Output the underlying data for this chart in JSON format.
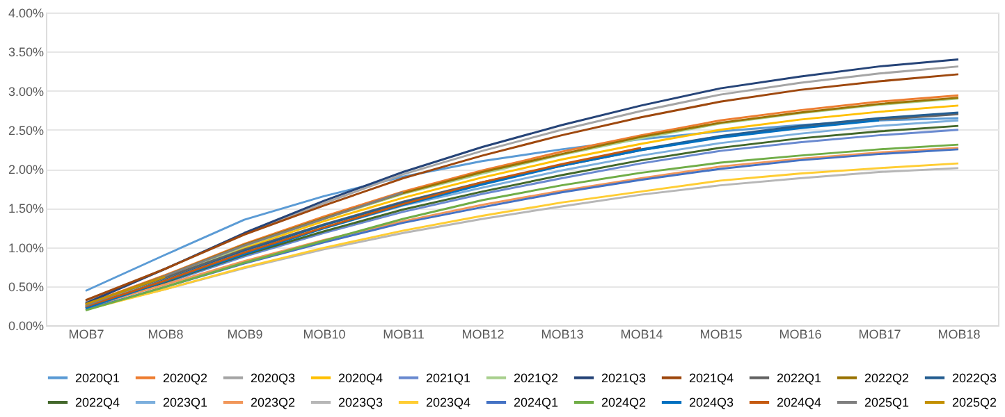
{
  "chart_data": {
    "type": "line",
    "categories": [
      "MOB7",
      "MOB8",
      "MOB9",
      "MOB10",
      "MOB11",
      "MOB12",
      "MOB13",
      "MOB14",
      "MOB15",
      "MOB16",
      "MOB17",
      "MOB18"
    ],
    "ylim": [
      0,
      4
    ],
    "yticks": [
      {
        "value": 0,
        "label": "0.00%"
      },
      {
        "value": 0.5,
        "label": "0.50%"
      },
      {
        "value": 1,
        "label": "1.00%"
      },
      {
        "value": 1.5,
        "label": "1.50%"
      },
      {
        "value": 2,
        "label": "2.00%"
      },
      {
        "value": 2.5,
        "label": "2.50%"
      },
      {
        "value": 3,
        "label": "3.00%"
      },
      {
        "value": 3.5,
        "label": "3.50%"
      },
      {
        "value": 4,
        "label": "4.00%"
      }
    ],
    "grid": "y",
    "legend": "bottom",
    "marker": "none",
    "line_style": "solid",
    "series": [
      {
        "name": "2020Q1",
        "color": "#5b9bd5",
        "values": [
          0.44,
          0.9,
          1.35,
          1.65,
          1.9,
          2.1,
          2.25,
          2.38,
          2.48,
          2.56,
          2.62,
          2.65
        ]
      },
      {
        "name": "2020Q2",
        "color": "#ed7d31",
        "values": [
          0.27,
          0.64,
          1.04,
          1.39,
          1.71,
          1.98,
          2.22,
          2.43,
          2.62,
          2.75,
          2.86,
          2.94
        ]
      },
      {
        "name": "2020Q3",
        "color": "#a5a5a5",
        "values": [
          0.3,
          0.72,
          1.17,
          1.56,
          1.93,
          2.23,
          2.5,
          2.74,
          2.95,
          3.1,
          3.22,
          3.31
        ]
      },
      {
        "name": "2020Q4",
        "color": "#ffc000",
        "values": [
          0.25,
          0.61,
          0.99,
          1.33,
          1.63,
          1.89,
          2.12,
          2.32,
          2.5,
          2.63,
          2.73,
          2.81
        ]
      },
      {
        "name": "2021Q1",
        "color": "#6a8ad0",
        "values": [
          0.22,
          0.54,
          0.88,
          1.18,
          1.45,
          1.68,
          1.88,
          2.07,
          2.23,
          2.34,
          2.43,
          2.5
        ]
      },
      {
        "name": "2021Q2",
        "color": "#a9d08e",
        "values": [
          0.24,
          0.59,
          1.01,
          1.36,
          1.68,
          1.94,
          2.18,
          2.39,
          2.58,
          2.71,
          2.82,
          2.9
        ]
      },
      {
        "name": "2021Q3",
        "color": "#264478",
        "values": [
          0.28,
          0.72,
          1.18,
          1.59,
          1.96,
          2.28,
          2.56,
          2.81,
          3.03,
          3.18,
          3.31,
          3.4
        ]
      },
      {
        "name": "2021Q4",
        "color": "#9e480e",
        "values": [
          0.32,
          0.72,
          1.16,
          1.53,
          1.88,
          2.17,
          2.43,
          2.66,
          2.86,
          3.01,
          3.12,
          3.21
        ]
      },
      {
        "name": "2022Q1",
        "color": "#636363",
        "values": [
          0.27,
          0.61,
          0.97,
          1.29,
          1.58,
          1.83,
          2.04,
          2.24,
          2.41,
          2.53,
          2.63,
          2.7
        ]
      },
      {
        "name": "2022Q2",
        "color": "#997300",
        "values": [
          0.26,
          0.63,
          1.03,
          1.37,
          1.69,
          1.96,
          2.19,
          2.41,
          2.59,
          2.72,
          2.83,
          2.91
        ]
      },
      {
        "name": "2022Q3",
        "color": "#255e91",
        "values": [
          0.23,
          0.58,
          0.95,
          1.28,
          1.57,
          1.82,
          2.05,
          2.25,
          2.42,
          2.55,
          2.65,
          2.72
        ]
      },
      {
        "name": "2022Q4",
        "color": "#43682b",
        "values": [
          0.22,
          0.55,
          0.9,
          1.2,
          1.48,
          1.71,
          1.92,
          2.11,
          2.27,
          2.39,
          2.48,
          2.55
        ]
      },
      {
        "name": "2023Q1",
        "color": "#7cafdd",
        "values": [
          0.24,
          0.57,
          0.93,
          1.24,
          1.53,
          1.76,
          1.98,
          2.17,
          2.33,
          2.45,
          2.55,
          2.62
        ]
      },
      {
        "name": "2023Q2",
        "color": "#f1975a",
        "values": [
          0.23,
          0.52,
          0.82,
          1.09,
          1.33,
          1.54,
          1.72,
          1.88,
          2.03,
          2.13,
          2.21,
          2.27
        ]
      },
      {
        "name": "2023Q3",
        "color": "#b7b7b7",
        "values": [
          0.21,
          0.46,
          0.73,
          0.97,
          1.18,
          1.36,
          1.52,
          1.67,
          1.79,
          1.88,
          1.96,
          2.01
        ]
      },
      {
        "name": "2023Q4",
        "color": "#ffcd33",
        "values": [
          0.2,
          0.46,
          0.74,
          0.99,
          1.21,
          1.4,
          1.57,
          1.71,
          1.85,
          1.94,
          2.01,
          2.07
        ]
      },
      {
        "name": "2024Q1",
        "color": "#4472c4",
        "values": [
          0.2,
          0.49,
          0.79,
          1.06,
          1.31,
          1.51,
          1.7,
          1.86,
          2.0,
          2.11,
          2.19,
          2.25
        ]
      },
      {
        "name": "2024Q2",
        "color": "#70ad47",
        "values": [
          0.19,
          0.49,
          0.8,
          1.08,
          1.36,
          1.6,
          1.79,
          1.95,
          2.08,
          2.17,
          2.25,
          2.31
        ]
      },
      {
        "name": "2024Q3",
        "color": "#0070c0",
        "values": [
          0.22,
          0.56,
          0.91,
          1.24,
          1.54,
          1.8,
          2.04,
          2.24,
          2.4,
          2.52,
          2.62,
          null
        ]
      },
      {
        "name": "2024Q4",
        "color": "#c55a11",
        "values": [
          0.24,
          0.57,
          0.93,
          1.25,
          1.55,
          1.83,
          2.06,
          2.27,
          null,
          null,
          null,
          null
        ]
      },
      {
        "name": "2025Q1",
        "color": "#7f7f7f",
        "values": [
          0.25,
          0.63,
          1.02,
          1.36,
          1.7,
          null,
          null,
          null,
          null,
          null,
          null,
          null
        ]
      },
      {
        "name": "2025Q2",
        "color": "#c39000",
        "values": [
          0.27,
          0.62,
          null,
          null,
          null,
          null,
          null,
          null,
          null,
          null,
          null,
          null
        ]
      }
    ]
  }
}
